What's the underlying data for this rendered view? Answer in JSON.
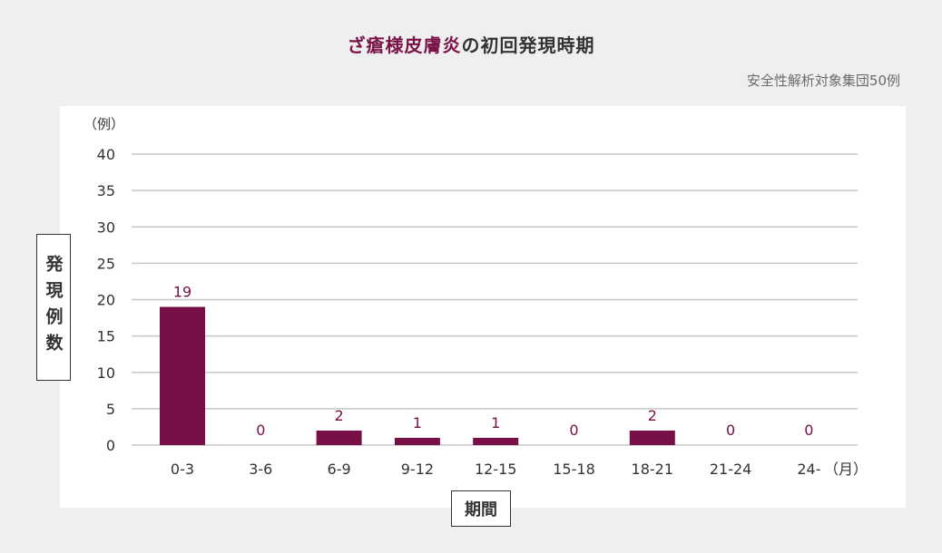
{
  "title": {
    "highlight": "ざ瘡様皮膚炎",
    "rest": "の初回発現時期"
  },
  "subtitle": "安全性解析対象集団50例",
  "colors": {
    "bar": "#761046",
    "grid": "#c8c8c8",
    "text": "#333333",
    "value_label": "#761046"
  },
  "chart_data": {
    "type": "bar",
    "categories": [
      "0-3",
      "3-6",
      "6-9",
      "9-12",
      "12-15",
      "15-18",
      "18-21",
      "21-24",
      "24-"
    ],
    "values": [
      19,
      0,
      2,
      1,
      1,
      0,
      2,
      0,
      0
    ],
    "xlabel": "期間",
    "ylabel": "発現例数",
    "y_unit": "（例）",
    "x_unit": "（月）",
    "ylim": [
      0,
      40
    ],
    "yticks": [
      0,
      5,
      10,
      15,
      20,
      25,
      30,
      35,
      40
    ],
    "grid": true,
    "data_labels": true
  }
}
